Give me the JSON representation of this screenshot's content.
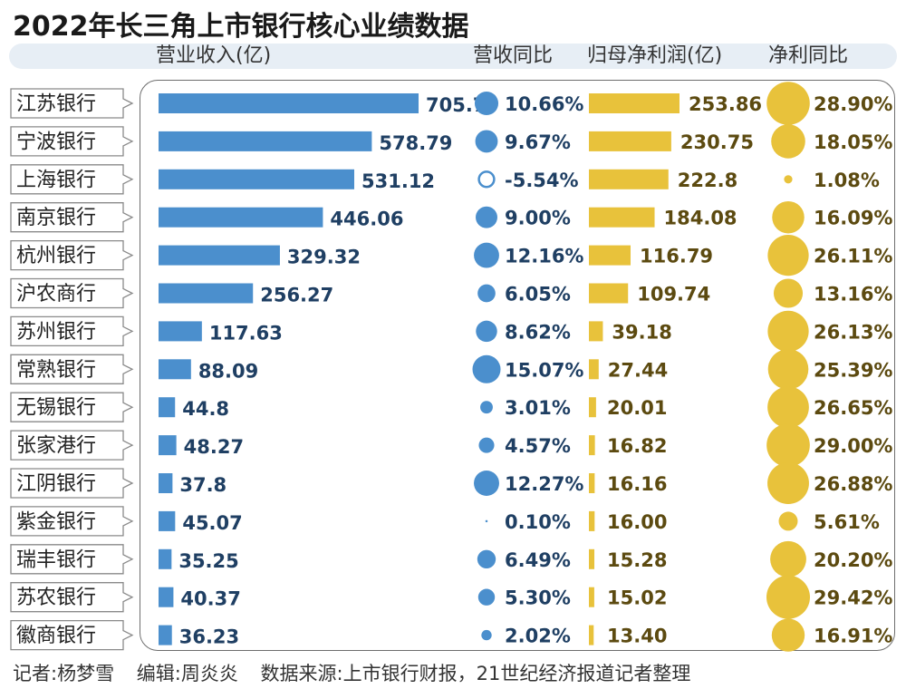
{
  "title": "2022年长三角上市银行核心业绩数据",
  "headers": {
    "revenue": "营业收入(亿)",
    "revenue_yoy": "营收同比",
    "net_profit": "归母净利润(亿)",
    "profit_yoy": "净利同比"
  },
  "footer": {
    "reporter": "记者:杨梦雪",
    "editor": "编辑:周炎炎",
    "source": "数据来源:上市银行财报，21世纪经济报道记者整理"
  },
  "colors": {
    "revenue_bar": "#4b8fcd",
    "revenue_text": "#1f3f63",
    "profit_bar": "#e8c23b",
    "profit_text": "#5c4a10",
    "label_border": "#8a8a8a"
  },
  "chart_data": {
    "type": "table",
    "categories": [
      "江苏银行",
      "宁波银行",
      "上海银行",
      "南京银行",
      "杭州银行",
      "沪农商行",
      "苏州银行",
      "常熟银行",
      "无锡银行",
      "张家港行",
      "江阴银行",
      "紫金银行",
      "瑞丰银行",
      "苏农银行",
      "徽商银行"
    ],
    "series": [
      {
        "name": "营业收入(亿)",
        "values": [
          705.7,
          578.79,
          531.12,
          446.06,
          329.32,
          256.27,
          117.63,
          88.09,
          44.8,
          48.27,
          37.8,
          45.07,
          35.25,
          40.37,
          36.23
        ],
        "labels": [
          "705.7",
          "578.79",
          "531.12",
          "446.06",
          "329.32",
          "256.27",
          "117.63",
          "88.09",
          "44.8",
          "48.27",
          "37.8",
          "45.07",
          "35.25",
          "40.37",
          "36.23"
        ]
      },
      {
        "name": "营收同比",
        "values": [
          10.66,
          9.67,
          -5.54,
          9.0,
          12.16,
          6.05,
          8.62,
          15.07,
          3.01,
          4.57,
          12.27,
          0.1,
          6.49,
          5.3,
          2.02
        ],
        "labels": [
          "10.66%",
          "9.67%",
          "-5.54%",
          "9.00%",
          "12.16%",
          "6.05%",
          "8.62%",
          "15.07%",
          "3.01%",
          "4.57%",
          "12.27%",
          "0.10%",
          "6.49%",
          "5.30%",
          "2.02%"
        ]
      },
      {
        "name": "归母净利润(亿)",
        "values": [
          253.86,
          230.75,
          222.8,
          184.08,
          116.79,
          109.74,
          39.18,
          27.44,
          20.01,
          16.82,
          16.16,
          16.0,
          15.28,
          15.02,
          13.4
        ],
        "labels": [
          "253.86",
          "230.75",
          "222.8",
          "184.08",
          "116.79",
          "109.74",
          "39.18",
          "27.44",
          "20.01",
          "16.82",
          "16.16",
          "16.00",
          "15.28",
          "15.02",
          "13.40"
        ]
      },
      {
        "name": "净利同比",
        "values": [
          28.9,
          18.05,
          1.08,
          16.09,
          26.11,
          13.16,
          26.13,
          25.39,
          26.65,
          29.0,
          26.88,
          5.61,
          20.2,
          29.42,
          16.91
        ],
        "labels": [
          "28.90%",
          "18.05%",
          "1.08%",
          "16.09%",
          "26.11%",
          "13.16%",
          "26.13%",
          "25.39%",
          "26.65%",
          "29.00%",
          "26.88%",
          "5.61%",
          "20.20%",
          "29.42%",
          "16.91%"
        ]
      }
    ]
  }
}
